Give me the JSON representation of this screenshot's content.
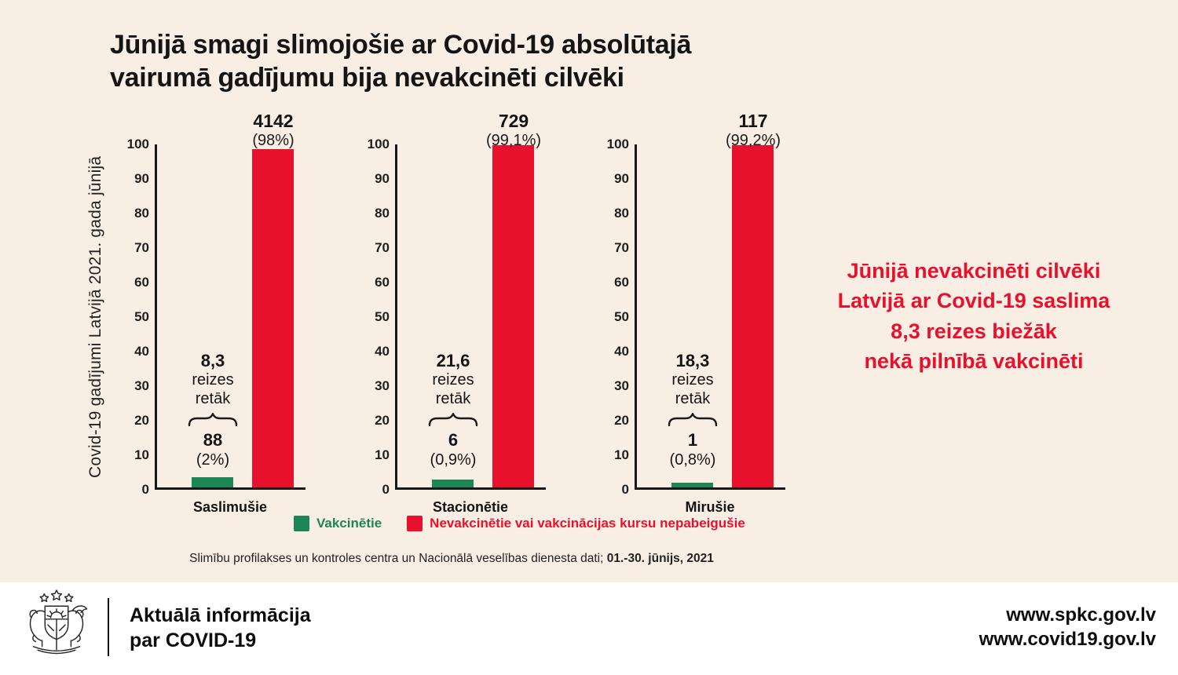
{
  "page": {
    "background": "#f9eee3",
    "footer_background": "#ffffff",
    "accent_red": "#e8112d",
    "accent_green": "#1d8657",
    "text_color": "#1c1c1c"
  },
  "title": "Jūnijā smagi slimojošie ar Covid-19 absolūtajā\nvairumā gadījumu bija nevakcinēti cilvēki",
  "y_axis_label": "Covid-19 gadījumi Latvijā 2021. gada jūnijā",
  "chart_data": {
    "type": "bar",
    "title": "Jūnijā smagi slimojošie ar Covid-19 absolūtajā vairumā gadījumu bija nevakcinēti cilvēki",
    "ylabel": "Covid-19 gadījumi Latvijā 2021. gada jūnijā",
    "categories": [
      "Saslimušie",
      "Stacionētie",
      "Mirušie"
    ],
    "ylim": [
      0,
      100
    ],
    "yticks": [
      0,
      10,
      20,
      30,
      40,
      50,
      60,
      70,
      80,
      90,
      100
    ],
    "grid": false,
    "legend_position": "bottom",
    "series": [
      {
        "name": "Vakcinētie",
        "color": "#1d8657",
        "counts": [
          88,
          6,
          1
        ],
        "percent_labels": [
          "(2%)",
          "(0,9%)",
          "(0,8%)"
        ],
        "bar_heights_axis_units": [
          3,
          2.3,
          1.4
        ]
      },
      {
        "name": "Nevakcinētie vai vakcinācijas kursu nepabeigušie",
        "color": "#e8112d",
        "counts": [
          4142,
          729,
          117
        ],
        "percent_labels": [
          "(98%)",
          "(99,1%)",
          "(99,2%)"
        ],
        "bar_heights_axis_units": [
          98,
          99,
          99
        ]
      }
    ],
    "annotations": [
      "8,3 reizes retāk",
      "21,6 reizes retāk",
      "18,3 reizes retāk"
    ]
  },
  "charts": [
    {
      "category": "Saslimušie",
      "red_value": "4142",
      "red_pct": "(98%)",
      "multiplier_value": "8,3",
      "multiplier_l2": "reizes",
      "multiplier_l3": "retāk",
      "green_value": "88",
      "green_pct": "(2%)"
    },
    {
      "category": "Stacionētie",
      "red_value": "729",
      "red_pct": "(99,1%)",
      "multiplier_value": "21,6",
      "multiplier_l2": "reizes",
      "multiplier_l3": "retāk",
      "green_value": "6",
      "green_pct": "(0,9%)"
    },
    {
      "category": "Mirušie",
      "red_value": "117",
      "red_pct": "(99,2%)",
      "multiplier_value": "18,3",
      "multiplier_l2": "reizes",
      "multiplier_l3": "retāk",
      "green_value": "1",
      "green_pct": "(0,8%)"
    }
  ],
  "legend": {
    "items": [
      {
        "label": "Vakcinētie",
        "color": "#1d8657"
      },
      {
        "label": "Nevakcinētie vai vakcinācijas kursu nepabeigušie",
        "color": "#e8112d"
      }
    ]
  },
  "source": {
    "text": "Slimību profilakses un kontroles centra un Nacionālā veselības dienesta dati; ",
    "bold": "01.-30. jūnijs, 2021"
  },
  "highlight": "Jūnijā nevakcinēti cilvēki\nLatvijā ar Covid-19 saslima\n8,3 reizes biežāk\nnekā pilnībā vakcinēti",
  "footer": {
    "heading": "Aktuālā informācija\npar COVID-19",
    "urls": "www.spkc.gov.lv\nwww.covid19.gov.lv",
    "logo": "latvia-coat-of-arms"
  }
}
